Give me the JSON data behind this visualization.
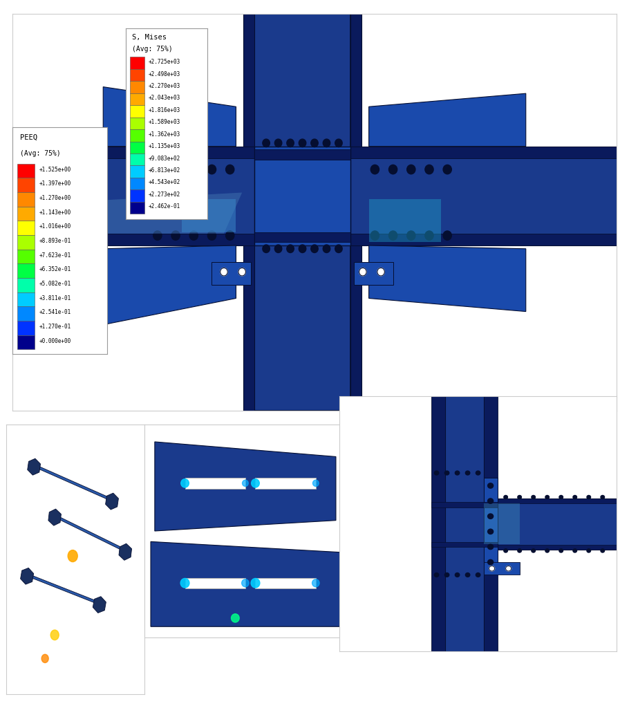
{
  "fig_width": 9.1,
  "fig_height": 10.24,
  "dpi": 100,
  "background_color": "#ffffff",
  "panel_bg": "#f0f0f0",
  "s_mises_title": "S, Mises\n(Avg: 75%)",
  "s_mises_labels": [
    "+2.725e+03",
    "+2.498e+03",
    "+2.270e+03",
    "+2.043e+03",
    "+1.816e+03",
    "+1.589e+03",
    "+1.362e+03",
    "+1.135e+03",
    "+9.083e+02",
    "+6.813e+02",
    "+4.543e+02",
    "+2.273e+02",
    "+2.462e-01"
  ],
  "s_mises_colors": [
    "#ff0000",
    "#ff4400",
    "#ff8800",
    "#ffaa00",
    "#ffff00",
    "#aaff00",
    "#55ff00",
    "#00ff44",
    "#00ffaa",
    "#00ccff",
    "#0088ff",
    "#0033ff",
    "#00008b"
  ],
  "peeq_title": "PEEQ\n(Avg: 75%)",
  "peeq_labels": [
    "+1.525e+00",
    "+1.397e+00",
    "+1.270e+00",
    "+1.143e+00",
    "+1.016e+00",
    "+8.893e-01",
    "+7.623e-01",
    "+6.352e-01",
    "+5.082e-01",
    "+3.811e-01",
    "+2.541e-01",
    "+1.270e-01",
    "+0.000e+00"
  ],
  "peeq_colors": [
    "#ff0000",
    "#ff4400",
    "#ff8800",
    "#ffaa00",
    "#ffff00",
    "#aaff00",
    "#55ff00",
    "#00ff44",
    "#00ffaa",
    "#00ccff",
    "#0088ff",
    "#0033ff",
    "#00008b"
  ],
  "main_bg_color": "#1a3a8c",
  "beam_color": "#1a3a9e",
  "dark_blue": "#0a1a5c",
  "mid_blue": "#1a4aac",
  "light_blue_fea": "#4a8acc",
  "cyan_fea": "#20aacc",
  "very_dark_blue": "#050e30"
}
